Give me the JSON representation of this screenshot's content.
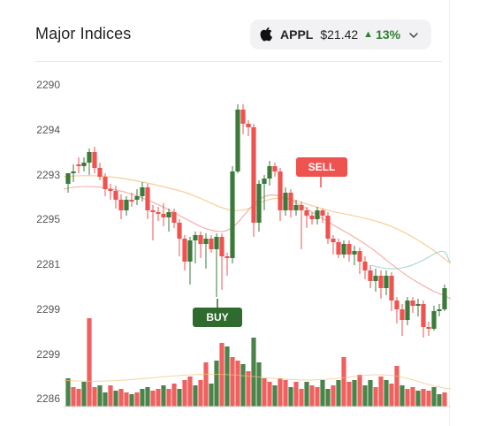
{
  "header": {
    "title": "Major Indices"
  },
  "ticker": {
    "icon": "apple-logo-icon",
    "symbol": "APPL",
    "price": "$21.42",
    "trend_icon": "triangle-up-icon",
    "change": "13%",
    "dropdown_icon": "chevron-down-icon"
  },
  "axis": {
    "y_labels": [
      "2290",
      "2294",
      "2293",
      "2295",
      "2281",
      "2299",
      "2299",
      "2286"
    ]
  },
  "markers": {
    "sell": "SELL",
    "buy": "BUY"
  },
  "colors": {
    "up": "#3b7a3b",
    "down": "#ef5350",
    "up_pct": "#2e7d32"
  }
}
